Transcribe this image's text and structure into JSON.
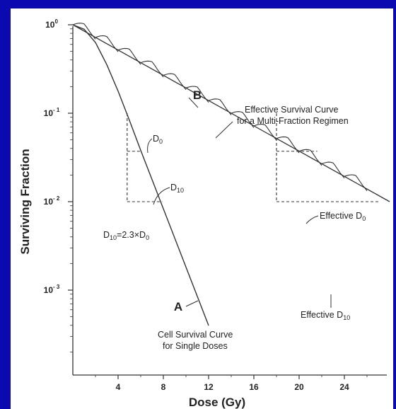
{
  "chart_data": {
    "type": "line",
    "xlabel": "Dose (Gy)",
    "ylabel": "Surviving Fraction",
    "xlim": [
      0,
      28
    ],
    "ylim_log10": [
      -4,
      0
    ],
    "y_log_scale": true,
    "x_ticks": [
      4,
      8,
      12,
      16,
      20,
      24
    ],
    "x_tick_labels": [
      "4",
      "8",
      "12",
      "16",
      "20",
      "24"
    ],
    "y_ticks": [
      0,
      -1,
      -2,
      -3
    ],
    "y_tick_labels": [
      {
        "base": "10",
        "exp": "0"
      },
      {
        "base": "10",
        "exp": "- 1"
      },
      {
        "base": "10",
        "exp": "- 2"
      },
      {
        "base": "10",
        "exp": "- 3"
      }
    ],
    "series": [
      {
        "name": "A",
        "caption_lines": [
          "Cell Survival Curve",
          "for Single Doses"
        ],
        "x": [
          0,
          1,
          2,
          3,
          4,
          5,
          6,
          8,
          10,
          12
        ],
        "log10_y": [
          0,
          -0.05,
          -0.2,
          -0.45,
          -0.75,
          -1.08,
          -1.42,
          -2.08,
          -2.74,
          -3.4
        ]
      },
      {
        "name": "B",
        "caption_lines": [
          "Effective Survival Curve",
          "for a Multi-Fraction Regimen"
        ],
        "fraction_size_gy": 2,
        "n_fractions": 13,
        "x": [
          0,
          28
        ],
        "log10_y": [
          0,
          -2.0
        ]
      }
    ],
    "annotations": {
      "d0": {
        "base": "D",
        "sub": "0"
      },
      "d10": {
        "base": "D",
        "sub": "10"
      },
      "relation": {
        "pre": "D",
        "pre_sub": "10",
        "mid": "=2.3×D",
        "post_sub": "0"
      },
      "effective_d0": {
        "base": "Effective D",
        "sub": "0"
      },
      "effective_d10": {
        "base": "Effective D",
        "sub": "10"
      }
    }
  }
}
